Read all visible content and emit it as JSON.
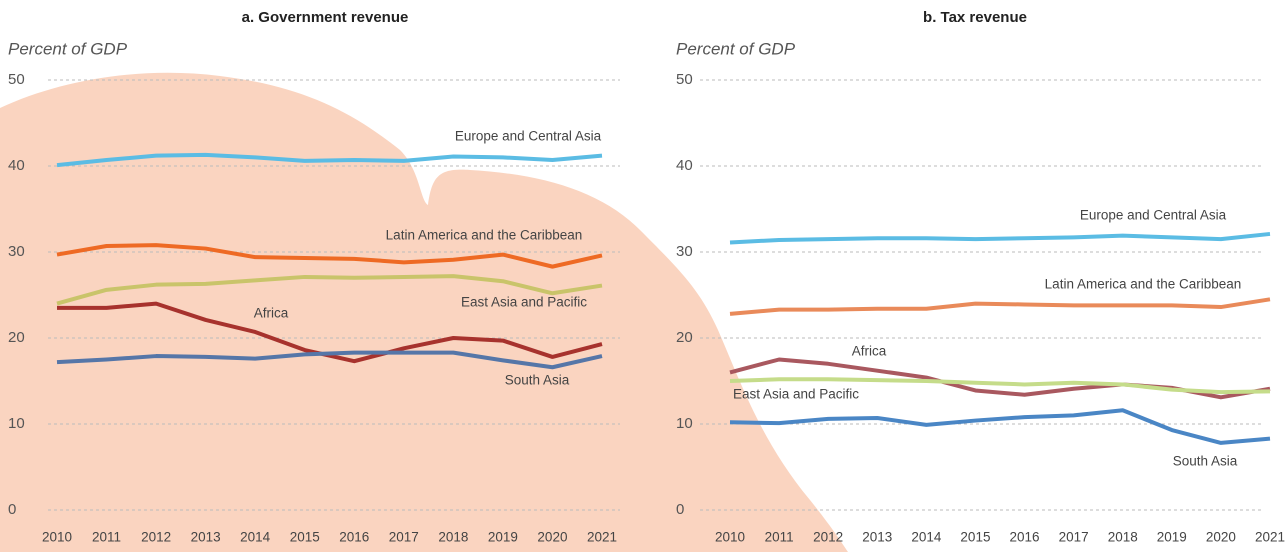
{
  "chart_data": [
    {
      "type": "line",
      "title": "a. Government revenue",
      "ylabel": "Percent of GDP",
      "categories": [
        "2010",
        "2011",
        "2012",
        "2013",
        "2014",
        "2015",
        "2016",
        "2017",
        "2018",
        "2019",
        "2020",
        "2021"
      ],
      "ylim": [
        0,
        50
      ],
      "yticks": [
        0,
        10,
        20,
        30,
        40,
        50
      ],
      "grid": true,
      "series": [
        {
          "name": "Europe and Central Asia",
          "color": "#5bbce4",
          "values": [
            40.1,
            40.7,
            41.2,
            41.3,
            41.0,
            40.6,
            40.7,
            40.6,
            41.1,
            41.0,
            40.7,
            41.2
          ]
        },
        {
          "name": "Latin America and the Caribbean",
          "color": "#ee6a24",
          "values": [
            29.7,
            30.7,
            30.8,
            30.4,
            29.4,
            29.3,
            29.2,
            28.8,
            29.1,
            29.7,
            28.3,
            29.6
          ]
        },
        {
          "name": "East Asia and Pacific",
          "color": "#c9c46a",
          "values": [
            24.0,
            25.6,
            26.2,
            26.3,
            26.7,
            27.1,
            27.0,
            27.1,
            27.2,
            26.6,
            25.2,
            26.1
          ]
        },
        {
          "name": "Africa",
          "color": "#a7322d",
          "values": [
            23.5,
            23.5,
            24.0,
            22.1,
            20.7,
            18.6,
            17.3,
            18.8,
            20.0,
            19.7,
            17.8,
            19.3
          ]
        },
        {
          "name": "South Asia",
          "color": "#5576a8",
          "values": [
            17.2,
            17.5,
            17.9,
            17.8,
            17.6,
            18.1,
            18.3,
            18.3,
            18.3,
            17.4,
            16.6,
            17.9
          ]
        }
      ]
    },
    {
      "type": "line",
      "title": "b. Tax revenue",
      "ylabel": "Percent of GDP",
      "categories": [
        "2010",
        "2011",
        "2012",
        "2013",
        "2014",
        "2015",
        "2016",
        "2017",
        "2018",
        "2019",
        "2020",
        "2021"
      ],
      "ylim": [
        0,
        50
      ],
      "yticks": [
        0,
        10,
        20,
        30,
        40,
        50
      ],
      "grid": true,
      "series": [
        {
          "name": "Europe and Central Asia",
          "color": "#5bbce4",
          "values": [
            31.1,
            31.4,
            31.5,
            31.6,
            31.6,
            31.5,
            31.6,
            31.7,
            31.9,
            31.7,
            31.5,
            32.1
          ]
        },
        {
          "name": "Latin America and the Caribbean",
          "color": "#e98a5a",
          "values": [
            22.8,
            23.3,
            23.3,
            23.4,
            23.4,
            24.0,
            23.9,
            23.8,
            23.8,
            23.8,
            23.6,
            24.5
          ]
        },
        {
          "name": "Africa",
          "color": "#a9585f",
          "values": [
            16.0,
            17.5,
            17.0,
            16.2,
            15.4,
            13.9,
            13.4,
            14.1,
            14.6,
            14.2,
            13.1,
            14.1
          ]
        },
        {
          "name": "East Asia and Pacific",
          "color": "#c5dc8a",
          "values": [
            15.0,
            15.2,
            15.2,
            15.1,
            15.0,
            14.8,
            14.6,
            14.8,
            14.6,
            14.0,
            13.7,
            13.8
          ]
        },
        {
          "name": "South Asia",
          "color": "#4a86c5",
          "values": [
            10.2,
            10.1,
            10.6,
            10.7,
            9.9,
            10.4,
            10.8,
            11.0,
            11.6,
            9.3,
            7.8,
            8.3
          ]
        }
      ]
    }
  ]
}
